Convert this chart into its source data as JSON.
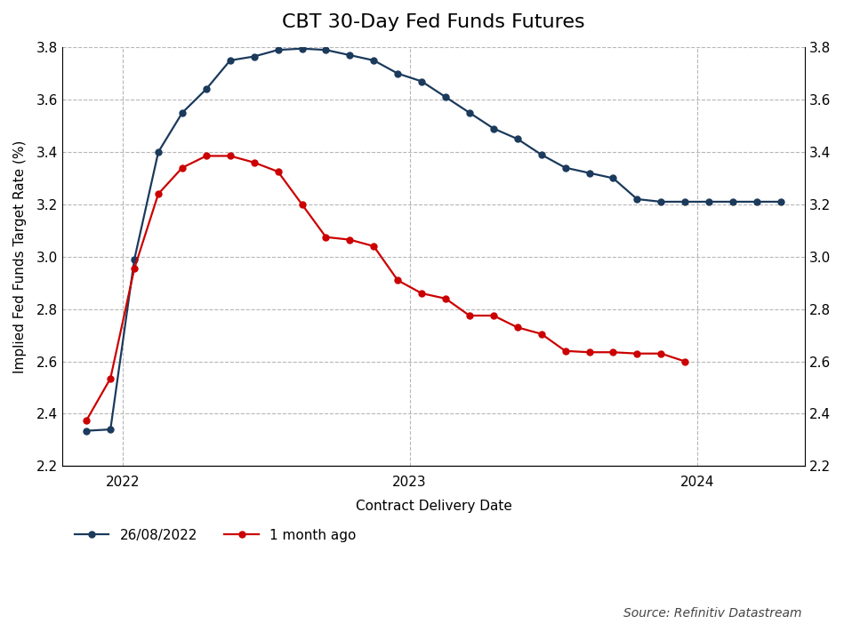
{
  "title": "CBT 30-Day Fed Funds Futures",
  "xlabel": "Contract Delivery Date",
  "ylabel": "Implied Fed Funds Target Rate (%)",
  "ylim": [
    2.2,
    3.8
  ],
  "yticks": [
    2.2,
    2.4,
    2.6,
    2.8,
    3.0,
    3.2,
    3.4,
    3.6,
    3.8
  ],
  "source_text": "Source: Refinitiv Datastream",
  "legend_labels": [
    "26/08/2022",
    "1 month ago"
  ],
  "line1_color": "#1b3a5c",
  "line2_color": "#cc0000",
  "background_color": "#ffffff",
  "grid_color": "#b0b0b0",
  "line1_x": [
    0,
    1,
    2,
    3,
    4,
    5,
    6,
    7,
    8,
    9,
    10,
    11,
    12,
    13,
    14,
    15,
    16,
    17,
    18,
    19,
    20,
    21,
    22,
    23,
    24,
    25,
    26,
    27,
    28,
    29
  ],
  "line1_y": [
    2.335,
    2.34,
    2.99,
    3.4,
    3.55,
    3.64,
    3.75,
    3.765,
    3.79,
    3.795,
    3.79,
    3.77,
    3.75,
    3.7,
    3.67,
    3.61,
    3.55,
    3.49,
    3.45,
    3.39,
    3.34,
    3.32,
    3.3,
    3.22,
    3.21,
    3.21,
    3.21,
    3.21,
    3.21,
    3.21
  ],
  "line2_x": [
    0,
    1,
    2,
    3,
    4,
    5,
    6,
    7,
    8,
    9,
    10,
    11,
    12,
    13,
    14,
    15,
    16,
    17,
    18,
    19,
    20,
    21,
    22,
    23,
    24,
    25
  ],
  "line2_y": [
    2.375,
    2.535,
    2.955,
    3.24,
    3.34,
    3.385,
    3.385,
    3.36,
    3.325,
    3.2,
    3.075,
    3.065,
    3.04,
    2.91,
    2.86,
    2.84,
    2.775,
    2.775,
    2.73,
    2.705,
    2.64,
    2.635,
    2.635,
    2.63,
    2.63,
    2.6
  ],
  "xlim": [
    -1,
    30
  ],
  "xtick_positions": [
    1.5,
    13.5,
    25.5
  ],
  "xtick_labels": [
    "2022",
    "2023",
    "2024"
  ],
  "title_fontsize": 16,
  "axis_fontsize": 11,
  "tick_fontsize": 11
}
